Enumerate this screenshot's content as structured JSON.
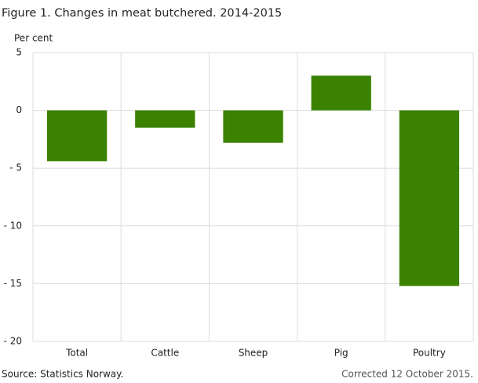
{
  "chart_data": {
    "type": "bar",
    "title": "Figure 1. Changes in meat butchered. 2014-2015",
    "y_label": "Per cent",
    "categories": [
      "Total",
      "Cattle",
      "Sheep",
      "Pig",
      "Poultry"
    ],
    "values": [
      -4.4,
      -1.5,
      -2.8,
      3.0,
      -15.2
    ],
    "color": "#3a8200",
    "ylim": [
      -20,
      5
    ],
    "yticks": [
      5,
      0,
      {
        "value": -5,
        "label": "- 5"
      },
      {
        "value": -10,
        "label": "- 10"
      },
      {
        "value": -15,
        "label": "- 15"
      },
      {
        "value": -20,
        "label": "- 20"
      }
    ],
    "grid": true,
    "source": "Source: Statistics Norway.",
    "note": "Corrected 12 October 2015."
  }
}
